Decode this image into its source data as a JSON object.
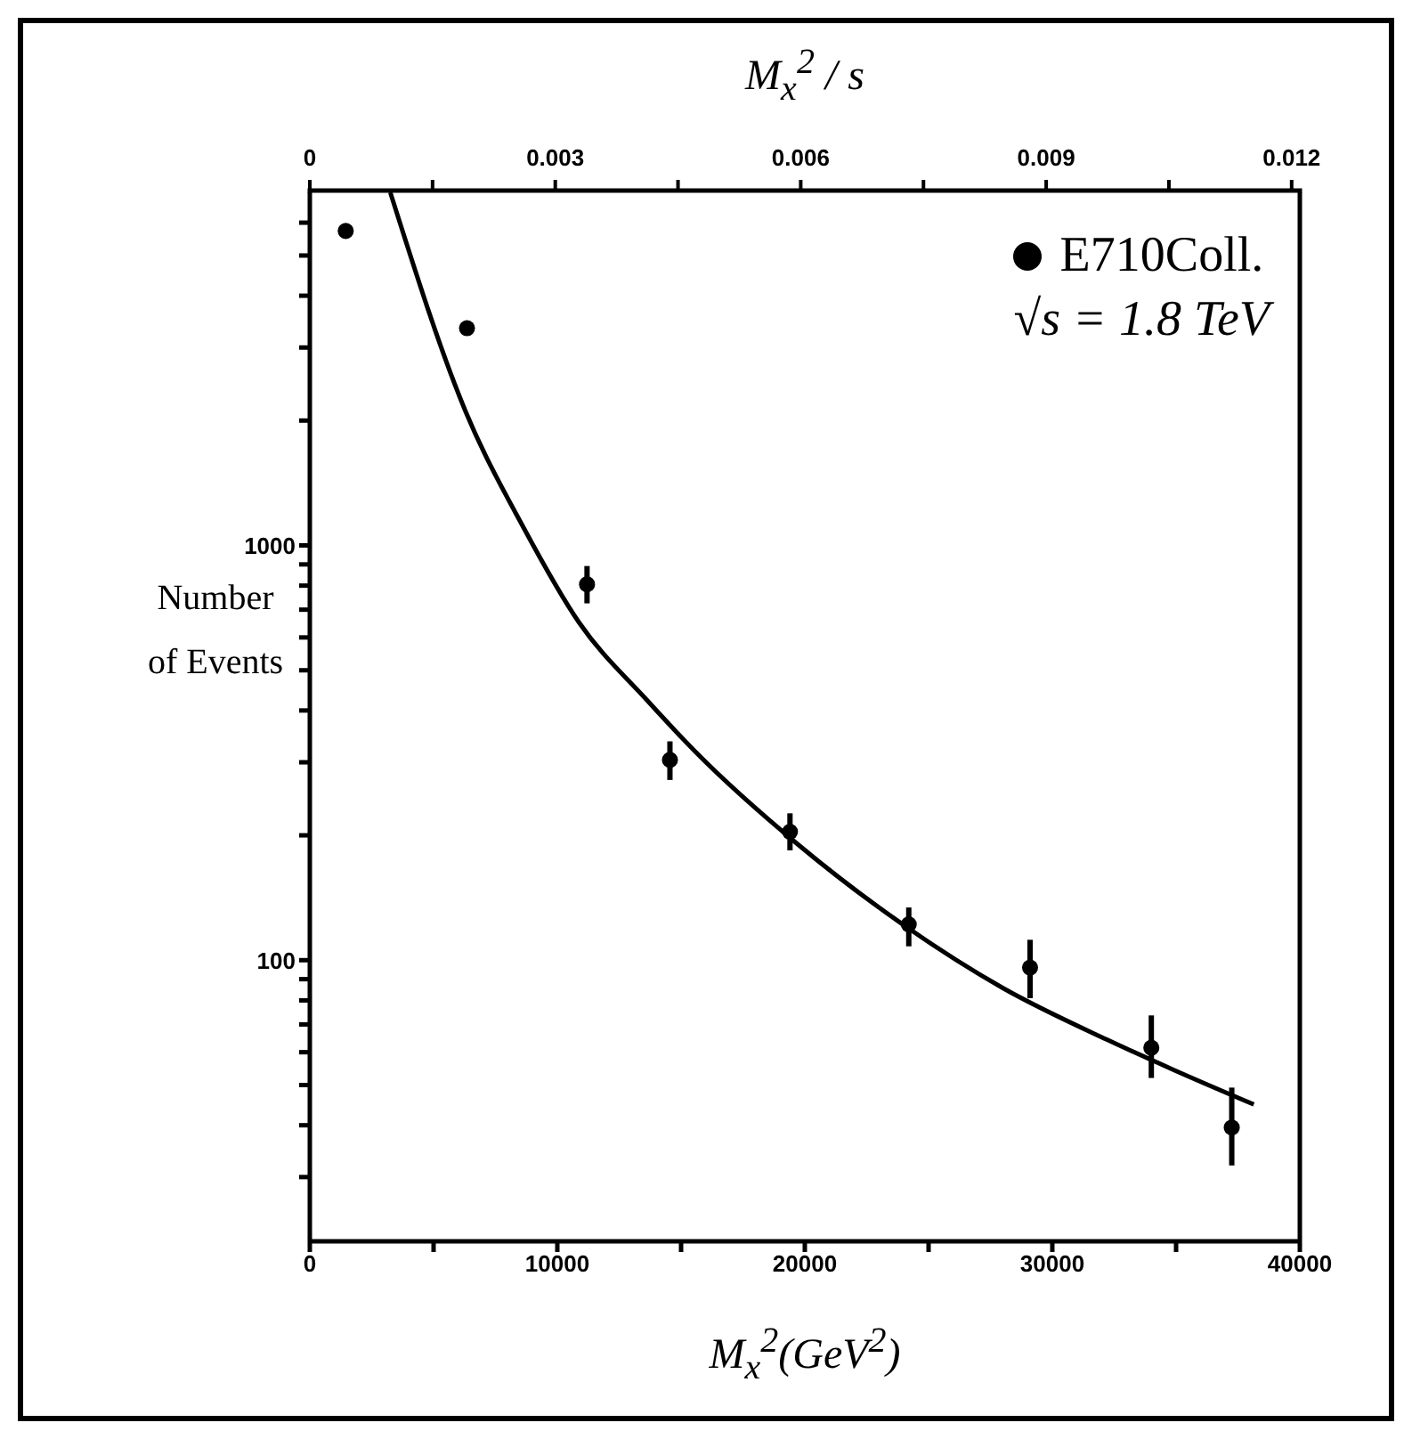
{
  "chart_data": {
    "type": "scatter",
    "xlabel": "M$_{x}$$^{2}$(GeV$^{2}$)",
    "x2label": "M$_{x}$$^{2}$ / s",
    "ylabel": "Number of Events",
    "log": "y",
    "legend": "top right",
    "annotations": [
      "√s = 1.8 TeV"
    ],
    "xlim": [
      0,
      40000
    ],
    "xticks": [
      0,
      {
        "value": 5000,
        "label": null
      },
      10000,
      {
        "value": 15000,
        "label": null
      },
      20000,
      {
        "value": 25000,
        "label": null
      },
      30000,
      {
        "value": 35000,
        "label": null
      },
      40000
    ],
    "x2lim": [
      0,
      0.0121
    ],
    "x2ticks": [
      0,
      {
        "value": 0.0015,
        "label": null
      },
      0.003,
      {
        "value": 0.0045,
        "label": null
      },
      0.006,
      {
        "value": 0.0075,
        "label": null
      },
      0.009,
      {
        "value": 0.0105,
        "label": null
      },
      0.012
    ],
    "ylim": [
      21,
      7100
    ],
    "yticks": [
      {
        "value": 30,
        "label": null
      },
      {
        "value": 40,
        "label": null
      },
      {
        "value": 50,
        "label": null
      },
      {
        "value": 60,
        "label": null
      },
      {
        "value": 70,
        "label": null
      },
      {
        "value": 80,
        "label": null
      },
      {
        "value": 90,
        "label": null
      },
      100,
      {
        "value": 200,
        "label": null
      },
      {
        "value": 300,
        "label": null
      },
      {
        "value": 400,
        "label": null
      },
      {
        "value": 500,
        "label": null
      },
      {
        "value": 600,
        "label": null
      },
      {
        "value": 700,
        "label": null
      },
      {
        "value": 800,
        "label": null
      },
      {
        "value": 900,
        "label": null
      },
      1000,
      {
        "value": 2000,
        "label": null
      },
      {
        "value": 3000,
        "label": null
      },
      {
        "value": 4000,
        "label": null
      },
      {
        "value": 5000,
        "label": null
      },
      {
        "value": 6000,
        "label": null
      }
    ],
    "series": [
      {
        "name": "E710Coll.",
        "color": "#000000",
        "marker": "circle",
        "x": [
          1450,
          6350,
          11200,
          14550,
          19400,
          24200,
          29100,
          34000,
          37250
        ],
        "values": [
          5730,
          3340,
          806,
          304,
          204,
          122,
          96,
          61.5,
          39.5
        ],
        "errors": [
          null,
          null,
          [
            725,
            892
          ],
          [
            272,
            337
          ],
          [
            184,
            226
          ],
          [
            108,
            134
          ],
          [
            81,
            112
          ],
          [
            52,
            73.6
          ],
          [
            32,
            49.3
          ]
        ]
      },
      {
        "type": "line",
        "color": "#000000",
        "x": [
          3250,
          6300,
          8650,
          10870,
          13630,
          15580,
          19730,
          23870,
          28030,
          32190,
          34960,
          38140
        ],
        "values": [
          7100,
          2100,
          1100,
          653,
          423,
          318,
          190,
          123,
          85.5,
          64.4,
          54.2,
          44.9
        ]
      }
    ]
  }
}
